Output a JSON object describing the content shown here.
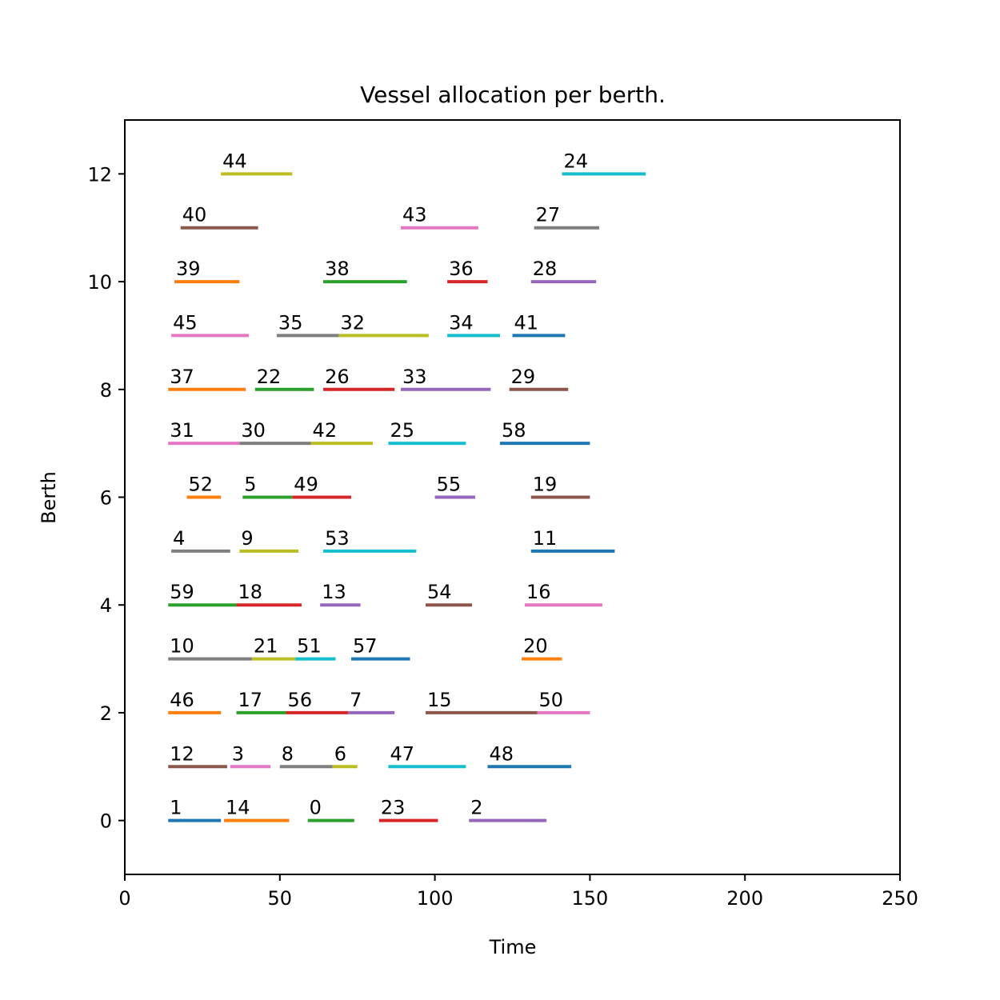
{
  "chart_data": {
    "type": "timeline",
    "title": "Vessel allocation per berth.",
    "xlabel": "Time",
    "ylabel": "Berth",
    "xlim": [
      0,
      250
    ],
    "ylim": [
      -1,
      13
    ],
    "xticks": [
      0,
      50,
      100,
      150,
      200,
      250
    ],
    "yticks": [
      0,
      2,
      4,
      6,
      8,
      10,
      12
    ],
    "grid": false,
    "legend": "none",
    "palette": [
      "#1f77b4",
      "#ff7f0e",
      "#2ca02c",
      "#d62728",
      "#9467bd",
      "#8c564b",
      "#e377c2",
      "#7f7f7f",
      "#bcbd22",
      "#17becf"
    ],
    "segments": [
      {
        "label": "1",
        "berth": 0,
        "start": 14,
        "end": 31,
        "color": "#1f77b4"
      },
      {
        "label": "14",
        "berth": 0,
        "start": 32,
        "end": 53,
        "color": "#ff7f0e"
      },
      {
        "label": "0",
        "berth": 0,
        "start": 59,
        "end": 74,
        "color": "#2ca02c"
      },
      {
        "label": "23",
        "berth": 0,
        "start": 82,
        "end": 101,
        "color": "#d62728"
      },
      {
        "label": "2",
        "berth": 0,
        "start": 111,
        "end": 136,
        "color": "#9467bd"
      },
      {
        "label": "12",
        "berth": 1,
        "start": 14,
        "end": 33,
        "color": "#8c564b"
      },
      {
        "label": "3",
        "berth": 1,
        "start": 34,
        "end": 47,
        "color": "#e377c2"
      },
      {
        "label": "8",
        "berth": 1,
        "start": 50,
        "end": 67,
        "color": "#7f7f7f"
      },
      {
        "label": "6",
        "berth": 1,
        "start": 67,
        "end": 75,
        "color": "#bcbd22"
      },
      {
        "label": "47",
        "berth": 1,
        "start": 85,
        "end": 110,
        "color": "#17becf"
      },
      {
        "label": "48",
        "berth": 1,
        "start": 117,
        "end": 144,
        "color": "#1f77b4"
      },
      {
        "label": "46",
        "berth": 2,
        "start": 14,
        "end": 31,
        "color": "#ff7f0e"
      },
      {
        "label": "17",
        "berth": 2,
        "start": 36,
        "end": 52,
        "color": "#2ca02c"
      },
      {
        "label": "56",
        "berth": 2,
        "start": 52,
        "end": 72,
        "color": "#d62728"
      },
      {
        "label": "7",
        "berth": 2,
        "start": 72,
        "end": 87,
        "color": "#9467bd"
      },
      {
        "label": "15",
        "berth": 2,
        "start": 97,
        "end": 133,
        "color": "#8c564b"
      },
      {
        "label": "50",
        "berth": 2,
        "start": 133,
        "end": 150,
        "color": "#e377c2"
      },
      {
        "label": "10",
        "berth": 3,
        "start": 14,
        "end": 41,
        "color": "#7f7f7f"
      },
      {
        "label": "21",
        "berth": 3,
        "start": 41,
        "end": 55,
        "color": "#bcbd22"
      },
      {
        "label": "51",
        "berth": 3,
        "start": 55,
        "end": 68,
        "color": "#17becf"
      },
      {
        "label": "57",
        "berth": 3,
        "start": 73,
        "end": 92,
        "color": "#1f77b4"
      },
      {
        "label": "20",
        "berth": 3,
        "start": 128,
        "end": 141,
        "color": "#ff7f0e"
      },
      {
        "label": "59",
        "berth": 4,
        "start": 14,
        "end": 36,
        "color": "#2ca02c"
      },
      {
        "label": "18",
        "berth": 4,
        "start": 36,
        "end": 57,
        "color": "#d62728"
      },
      {
        "label": "13",
        "berth": 4,
        "start": 63,
        "end": 76,
        "color": "#9467bd"
      },
      {
        "label": "54",
        "berth": 4,
        "start": 97,
        "end": 112,
        "color": "#8c564b"
      },
      {
        "label": "16",
        "berth": 4,
        "start": 129,
        "end": 154,
        "color": "#e377c2"
      },
      {
        "label": "4",
        "berth": 5,
        "start": 15,
        "end": 34,
        "color": "#7f7f7f"
      },
      {
        "label": "9",
        "berth": 5,
        "start": 37,
        "end": 56,
        "color": "#bcbd22"
      },
      {
        "label": "53",
        "berth": 5,
        "start": 64,
        "end": 94,
        "color": "#17becf"
      },
      {
        "label": "11",
        "berth": 5,
        "start": 131,
        "end": 158,
        "color": "#1f77b4"
      },
      {
        "label": "52",
        "berth": 6,
        "start": 20,
        "end": 31,
        "color": "#ff7f0e"
      },
      {
        "label": "5",
        "berth": 6,
        "start": 38,
        "end": 54,
        "color": "#2ca02c"
      },
      {
        "label": "49",
        "berth": 6,
        "start": 54,
        "end": 73,
        "color": "#d62728"
      },
      {
        "label": "55",
        "berth": 6,
        "start": 100,
        "end": 113,
        "color": "#9467bd"
      },
      {
        "label": "19",
        "berth": 6,
        "start": 131,
        "end": 150,
        "color": "#8c564b"
      },
      {
        "label": "31",
        "berth": 7,
        "start": 14,
        "end": 37,
        "color": "#e377c2"
      },
      {
        "label": "30",
        "berth": 7,
        "start": 37,
        "end": 60,
        "color": "#7f7f7f"
      },
      {
        "label": "42",
        "berth": 7,
        "start": 60,
        "end": 80,
        "color": "#bcbd22"
      },
      {
        "label": "25",
        "berth": 7,
        "start": 85,
        "end": 110,
        "color": "#17becf"
      },
      {
        "label": "58",
        "berth": 7,
        "start": 121,
        "end": 150,
        "color": "#1f77b4"
      },
      {
        "label": "37",
        "berth": 8,
        "start": 14,
        "end": 39,
        "color": "#ff7f0e"
      },
      {
        "label": "22",
        "berth": 8,
        "start": 42,
        "end": 61,
        "color": "#2ca02c"
      },
      {
        "label": "26",
        "berth": 8,
        "start": 64,
        "end": 87,
        "color": "#d62728"
      },
      {
        "label": "33",
        "berth": 8,
        "start": 89,
        "end": 118,
        "color": "#9467bd"
      },
      {
        "label": "29",
        "berth": 8,
        "start": 124,
        "end": 143,
        "color": "#8c564b"
      },
      {
        "label": "45",
        "berth": 9,
        "start": 15,
        "end": 40,
        "color": "#e377c2"
      },
      {
        "label": "35",
        "berth": 9,
        "start": 49,
        "end": 69,
        "color": "#7f7f7f"
      },
      {
        "label": "32",
        "berth": 9,
        "start": 69,
        "end": 98,
        "color": "#bcbd22"
      },
      {
        "label": "34",
        "berth": 9,
        "start": 104,
        "end": 121,
        "color": "#17becf"
      },
      {
        "label": "41",
        "berth": 9,
        "start": 125,
        "end": 142,
        "color": "#1f77b4"
      },
      {
        "label": "39",
        "berth": 10,
        "start": 16,
        "end": 37,
        "color": "#ff7f0e"
      },
      {
        "label": "38",
        "berth": 10,
        "start": 64,
        "end": 91,
        "color": "#2ca02c"
      },
      {
        "label": "36",
        "berth": 10,
        "start": 104,
        "end": 117,
        "color": "#d62728"
      },
      {
        "label": "28",
        "berth": 10,
        "start": 131,
        "end": 152,
        "color": "#9467bd"
      },
      {
        "label": "40",
        "berth": 11,
        "start": 18,
        "end": 43,
        "color": "#8c564b"
      },
      {
        "label": "43",
        "berth": 11,
        "start": 89,
        "end": 114,
        "color": "#e377c2"
      },
      {
        "label": "27",
        "berth": 11,
        "start": 132,
        "end": 153,
        "color": "#7f7f7f"
      },
      {
        "label": "44",
        "berth": 12,
        "start": 31,
        "end": 54,
        "color": "#bcbd22"
      },
      {
        "label": "24",
        "berth": 12,
        "start": 141,
        "end": 168,
        "color": "#17becf"
      }
    ]
  }
}
